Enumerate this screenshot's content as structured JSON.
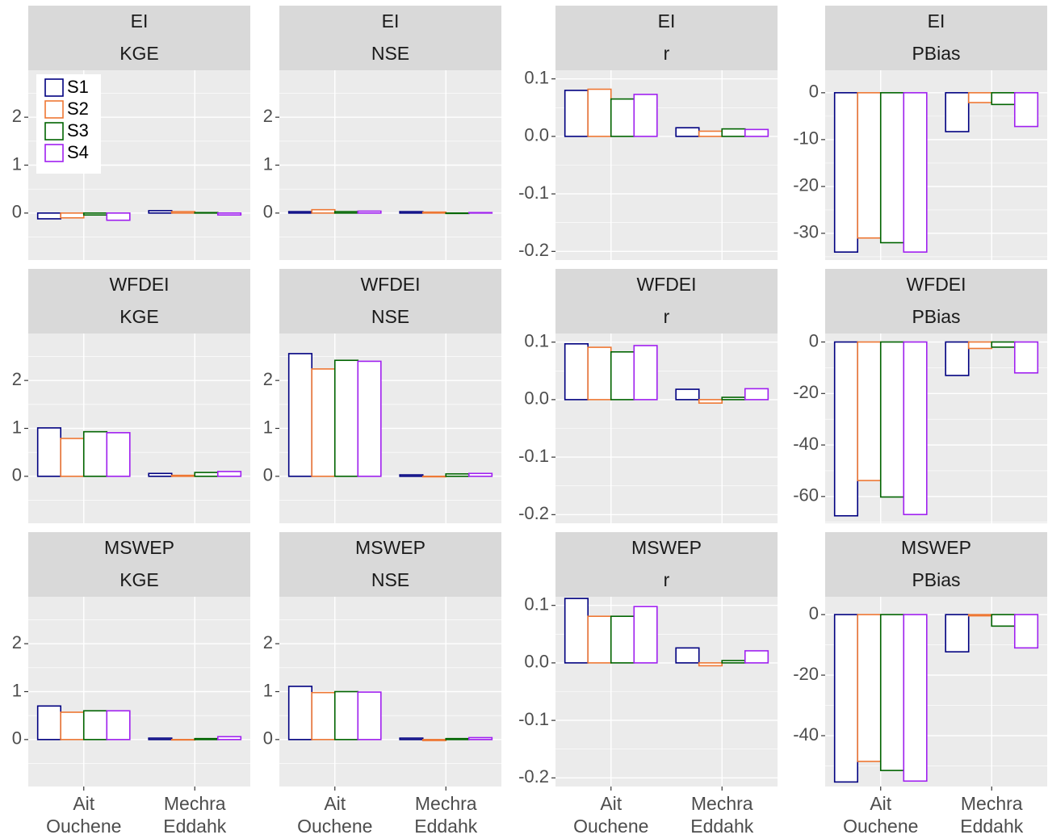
{
  "chart_data": [
    {
      "type": "bar",
      "strip": [
        "EI",
        "KGE"
      ],
      "legend": "top-left",
      "categories": [
        null,
        null
      ],
      "ylim": [
        -0.98,
        2.98
      ],
      "yticks": [
        0,
        1,
        2
      ],
      "grid": true,
      "series": [
        {
          "name": "S1",
          "color": "#000080",
          "values": [
            -0.12,
            0.05
          ]
        },
        {
          "name": "S2",
          "color": "#ee7733",
          "values": [
            -0.1,
            0.03
          ]
        },
        {
          "name": "S3",
          "color": "#006400",
          "values": [
            -0.04,
            0.01
          ]
        },
        {
          "name": "S4",
          "color": "#a020f0",
          "values": [
            -0.15,
            -0.04
          ]
        }
      ]
    },
    {
      "type": "bar",
      "strip": [
        "EI",
        "NSE"
      ],
      "categories": [
        null,
        null
      ],
      "ylim": [
        -0.98,
        2.98
      ],
      "yticks": [
        0,
        1,
        2
      ],
      "grid": true,
      "series": [
        {
          "color": "#000080",
          "values": [
            0.03,
            0.03
          ]
        },
        {
          "color": "#ee7733",
          "values": [
            0.07,
            0.02
          ]
        },
        {
          "color": "#006400",
          "values": [
            0.03,
            0.0
          ]
        },
        {
          "color": "#a020f0",
          "values": [
            0.04,
            0.01
          ]
        }
      ]
    },
    {
      "type": "bar",
      "strip": [
        "EI",
        "r"
      ],
      "categories": [
        null,
        null
      ],
      "ylim": [
        -0.215,
        0.115
      ],
      "yticks": [
        -0.2,
        -0.1,
        {
          "value": 0,
          "label": "0.0"
        },
        0.1
      ],
      "grid": true,
      "series": [
        {
          "color": "#000080",
          "values": [
            0.08,
            0.015
          ]
        },
        {
          "color": "#ee7733",
          "values": [
            0.082,
            0.009
          ]
        },
        {
          "color": "#006400",
          "values": [
            0.065,
            0.013
          ]
        },
        {
          "color": "#a020f0",
          "values": [
            0.073,
            0.012
          ]
        }
      ]
    },
    {
      "type": "bar",
      "strip": [
        "EI",
        "PBias"
      ],
      "categories": [
        null,
        null
      ],
      "ylim": [
        -35.7,
        4.8
      ],
      "yticks": [
        -30,
        -20,
        -10,
        0
      ],
      "grid": true,
      "series": [
        {
          "color": "#000080",
          "values": [
            -34,
            -8.3
          ]
        },
        {
          "color": "#ee7733",
          "values": [
            -31,
            -2.1
          ]
        },
        {
          "color": "#006400",
          "values": [
            -32,
            -2.5
          ]
        },
        {
          "color": "#a020f0",
          "values": [
            -34,
            -7.2
          ]
        }
      ]
    },
    {
      "type": "bar",
      "strip": [
        "WFDEI",
        "KGE"
      ],
      "categories": [
        null,
        null
      ],
      "ylim": [
        -0.98,
        2.98
      ],
      "yticks": [
        0,
        1,
        2
      ],
      "grid": true,
      "series": [
        {
          "color": "#000080",
          "values": [
            1.01,
            0.06
          ]
        },
        {
          "color": "#ee7733",
          "values": [
            0.79,
            0.02
          ]
        },
        {
          "color": "#006400",
          "values": [
            0.93,
            0.08
          ]
        },
        {
          "color": "#a020f0",
          "values": [
            0.91,
            0.1
          ]
        }
      ]
    },
    {
      "type": "bar",
      "strip": [
        "WFDEI",
        "NSE"
      ],
      "categories": [
        null,
        null
      ],
      "ylim": [
        -0.98,
        2.98
      ],
      "yticks": [
        0,
        1,
        2
      ],
      "grid": true,
      "series": [
        {
          "color": "#000080",
          "values": [
            2.56,
            0.03
          ]
        },
        {
          "color": "#ee7733",
          "values": [
            2.24,
            -0.01
          ]
        },
        {
          "color": "#006400",
          "values": [
            2.42,
            0.05
          ]
        },
        {
          "color": "#a020f0",
          "values": [
            2.4,
            0.06
          ]
        }
      ]
    },
    {
      "type": "bar",
      "strip": [
        "WFDEI",
        "r"
      ],
      "categories": [
        null,
        null
      ],
      "ylim": [
        -0.215,
        0.115
      ],
      "yticks": [
        -0.2,
        -0.1,
        {
          "value": 0,
          "label": "0.0"
        },
        0.1
      ],
      "grid": true,
      "series": [
        {
          "color": "#000080",
          "values": [
            0.097,
            0.018
          ]
        },
        {
          "color": "#ee7733",
          "values": [
            0.091,
            -0.006
          ]
        },
        {
          "color": "#006400",
          "values": [
            0.083,
            0.004
          ]
        },
        {
          "color": "#a020f0",
          "values": [
            0.094,
            0.019
          ]
        }
      ]
    },
    {
      "type": "bar",
      "strip": [
        "WFDEI",
        "PBias"
      ],
      "categories": [
        null,
        null
      ],
      "ylim": [
        -70.4,
        3.3
      ],
      "yticks": [
        -60,
        -40,
        -20,
        0
      ],
      "grid": true,
      "series": [
        {
          "color": "#000080",
          "values": [
            -67.5,
            -13
          ]
        },
        {
          "color": "#ee7733",
          "values": [
            -53.8,
            -2.5
          ]
        },
        {
          "color": "#006400",
          "values": [
            -60.2,
            -2
          ]
        },
        {
          "color": "#a020f0",
          "values": [
            -67,
            -12
          ]
        }
      ]
    },
    {
      "type": "bar",
      "strip": [
        "MSWEP",
        "KGE"
      ],
      "categories": [
        "Ait Ouchene",
        "Mechra Eddahk"
      ],
      "ylim": [
        -0.98,
        2.98
      ],
      "yticks": [
        0,
        1,
        2
      ],
      "grid": true,
      "series": [
        {
          "color": "#000080",
          "values": [
            0.7,
            0.03
          ]
        },
        {
          "color": "#ee7733",
          "values": [
            0.57,
            0.0
          ]
        },
        {
          "color": "#006400",
          "values": [
            0.6,
            0.02
          ]
        },
        {
          "color": "#a020f0",
          "values": [
            0.6,
            0.06
          ]
        }
      ]
    },
    {
      "type": "bar",
      "strip": [
        "MSWEP",
        "NSE"
      ],
      "categories": [
        "Ait Ouchene",
        "Mechra Eddahk"
      ],
      "ylim": [
        -0.98,
        2.98
      ],
      "yticks": [
        0,
        1,
        2
      ],
      "grid": true,
      "series": [
        {
          "color": "#000080",
          "values": [
            1.11,
            0.03
          ]
        },
        {
          "color": "#ee7733",
          "values": [
            0.98,
            -0.02
          ]
        },
        {
          "color": "#006400",
          "values": [
            1.0,
            0.02
          ]
        },
        {
          "color": "#a020f0",
          "values": [
            0.99,
            0.04
          ]
        }
      ]
    },
    {
      "type": "bar",
      "strip": [
        "MSWEP",
        "r"
      ],
      "categories": [
        "Ait Ouchene",
        "Mechra Eddahk"
      ],
      "ylim": [
        -0.215,
        0.115
      ],
      "yticks": [
        -0.2,
        -0.1,
        {
          "value": 0,
          "label": "0.0"
        },
        0.1
      ],
      "grid": true,
      "series": [
        {
          "color": "#000080",
          "values": [
            0.112,
            0.026
          ]
        },
        {
          "color": "#ee7733",
          "values": [
            0.081,
            -0.005
          ]
        },
        {
          "color": "#006400",
          "values": [
            0.081,
            0.004
          ]
        },
        {
          "color": "#a020f0",
          "values": [
            0.098,
            0.021
          ]
        }
      ]
    },
    {
      "type": "bar",
      "strip": [
        "MSWEP",
        "PBias"
      ],
      "categories": [
        "Ait Ouchene",
        "Mechra Eddahk"
      ],
      "ylim": [
        -56.8,
        5.9
      ],
      "yticks": [
        -40,
        -20,
        0
      ],
      "grid": true,
      "series": [
        {
          "color": "#000080",
          "values": [
            -55.3,
            -12.3
          ]
        },
        {
          "color": "#ee7733",
          "values": [
            -48.5,
            -0.4
          ]
        },
        {
          "color": "#006400",
          "values": [
            -51.5,
            -3.8
          ]
        },
        {
          "color": "#a020f0",
          "values": [
            -55,
            -11
          ]
        }
      ]
    }
  ]
}
